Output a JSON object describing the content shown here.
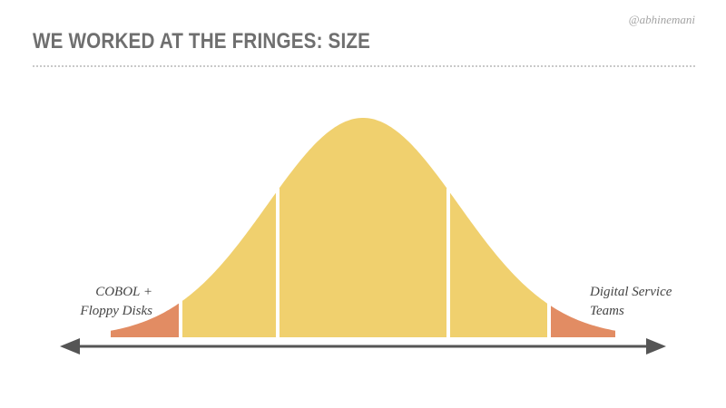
{
  "slide": {
    "title": "WE WORKED AT THE FRINGES: SIZE",
    "handle": "@abhinemani"
  },
  "labels": {
    "left_line1": "COBOL +",
    "left_line2": "Floppy Disks",
    "right_line1": "Digital Service",
    "right_line2": "Teams"
  },
  "colors": {
    "tail": "#e28c63",
    "body": "#f0d06e",
    "axis": "#555555",
    "divider": "#ffffff"
  }
}
